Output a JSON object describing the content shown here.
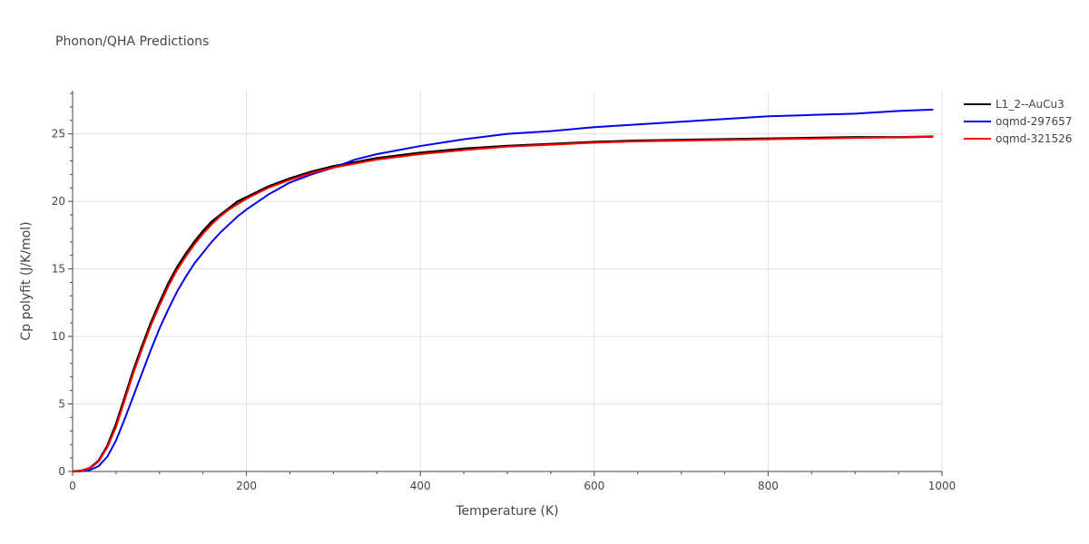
{
  "chart_data": {
    "type": "line",
    "title": "Phonon/QHA Predictions",
    "xlabel": "Temperature (K)",
    "ylabel": "Cp polyfit (J/K/mol)",
    "xlim": [
      0,
      1000
    ],
    "ylim": [
      0,
      28.2
    ],
    "xticks": [
      0,
      200,
      400,
      600,
      800,
      1000
    ],
    "yticks": [
      0,
      5,
      10,
      15,
      20,
      25
    ],
    "grid": true,
    "legend_position": "top-right",
    "series": [
      {
        "name": "L1_2--AuCu3",
        "color": "#000000",
        "x": [
          0,
          10,
          20,
          30,
          40,
          50,
          60,
          70,
          80,
          90,
          100,
          110,
          120,
          130,
          140,
          150,
          160,
          170,
          180,
          190,
          200,
          225,
          250,
          275,
          300,
          350,
          400,
          450,
          500,
          550,
          600,
          650,
          700,
          750,
          800,
          850,
          900,
          950,
          990
        ],
        "y": [
          0,
          0.05,
          0.25,
          0.8,
          1.9,
          3.5,
          5.5,
          7.5,
          9.3,
          11.0,
          12.5,
          13.9,
          15.1,
          16.1,
          17.0,
          17.8,
          18.5,
          19.0,
          19.5,
          20.0,
          20.3,
          21.1,
          21.7,
          22.2,
          22.6,
          23.2,
          23.6,
          23.9,
          24.1,
          24.25,
          24.4,
          24.5,
          24.55,
          24.6,
          24.65,
          24.7,
          24.75,
          24.75,
          24.8
        ]
      },
      {
        "name": "oqmd-297657",
        "color": "#0000ee",
        "x": [
          0,
          10,
          20,
          30,
          40,
          50,
          60,
          70,
          80,
          90,
          100,
          110,
          120,
          130,
          140,
          150,
          160,
          170,
          180,
          190,
          200,
          225,
          250,
          275,
          300,
          325,
          350,
          400,
          450,
          500,
          550,
          600,
          650,
          700,
          750,
          800,
          850,
          900,
          950,
          990
        ],
        "y": [
          0,
          0.02,
          0.1,
          0.4,
          1.1,
          2.3,
          3.9,
          5.6,
          7.3,
          9.0,
          10.6,
          12.0,
          13.3,
          14.4,
          15.4,
          16.2,
          17.0,
          17.7,
          18.3,
          18.9,
          19.4,
          20.5,
          21.4,
          22.0,
          22.5,
          23.1,
          23.5,
          24.1,
          24.6,
          25.0,
          25.2,
          25.5,
          25.7,
          25.9,
          26.1,
          26.3,
          26.4,
          26.5,
          26.7,
          26.8
        ]
      },
      {
        "name": "oqmd-321526",
        "color": "#ff0000",
        "x": [
          0,
          10,
          20,
          30,
          40,
          50,
          60,
          70,
          80,
          90,
          100,
          110,
          120,
          130,
          140,
          150,
          160,
          170,
          180,
          190,
          200,
          225,
          250,
          275,
          300,
          350,
          400,
          450,
          500,
          550,
          600,
          650,
          700,
          750,
          800,
          850,
          900,
          950,
          990
        ],
        "y": [
          0,
          0.05,
          0.22,
          0.75,
          1.8,
          3.3,
          5.3,
          7.3,
          9.1,
          10.8,
          12.3,
          13.7,
          14.9,
          15.9,
          16.8,
          17.6,
          18.3,
          18.9,
          19.4,
          19.8,
          20.2,
          21.0,
          21.6,
          22.1,
          22.5,
          23.1,
          23.5,
          23.8,
          24.05,
          24.2,
          24.35,
          24.45,
          24.5,
          24.55,
          24.6,
          24.65,
          24.7,
          24.75,
          24.8
        ]
      }
    ]
  }
}
